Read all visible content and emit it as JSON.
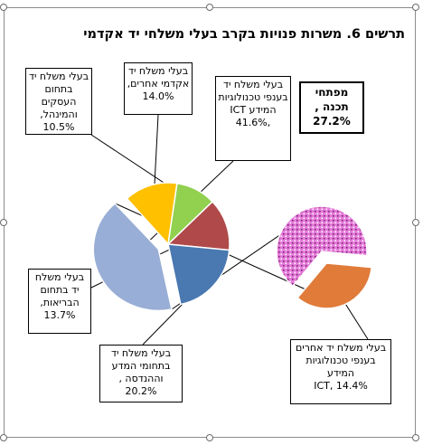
{
  "chart_data": {
    "type": "pie",
    "title": "תרשים 6. משרות פנויות בקרב בעלי משלחי יד אקדמי",
    "slices": [
      {
        "name": "בעלי משלח יד אקדמי אחרים,",
        "value": 14.0,
        "label": "14.0%",
        "color": "#FFC000"
      },
      {
        "name": "בעלי משלח יד בתחום העסקים והמינהל,",
        "value": 10.5,
        "label": "10.5%",
        "color": "#92D050"
      },
      {
        "name": "בעלי משלח יד בתחום הבריאות,",
        "value": 13.7,
        "label": "13.7%",
        "color": "#B04A4A"
      },
      {
        "name": "בעלי משלח יד בתחומי המדע וההנדסה ,",
        "value": 20.2,
        "label": "20.2%",
        "color": "#4A78B0"
      },
      {
        "name": "בעלי משלח יד בענפי טכנולוגיות המידע ICT",
        "value": 41.6,
        "label": ",41.6%",
        "color": "#99AED6"
      }
    ],
    "breakout": {
      "of": "בעלי משלח יד בענפי טכנולוגיות המידע ICT",
      "slices": [
        {
          "name": "מפתחי תכנה ,",
          "value": 27.2,
          "label": "27.2%",
          "color": "#E37AD8"
        },
        {
          "name": "בעלי משלח יד אחרים בענפי טכנולוגיות המידע",
          "value": 14.4,
          "label": "ICT, 14.4%",
          "color": "#E07B3A"
        }
      ]
    }
  }
}
